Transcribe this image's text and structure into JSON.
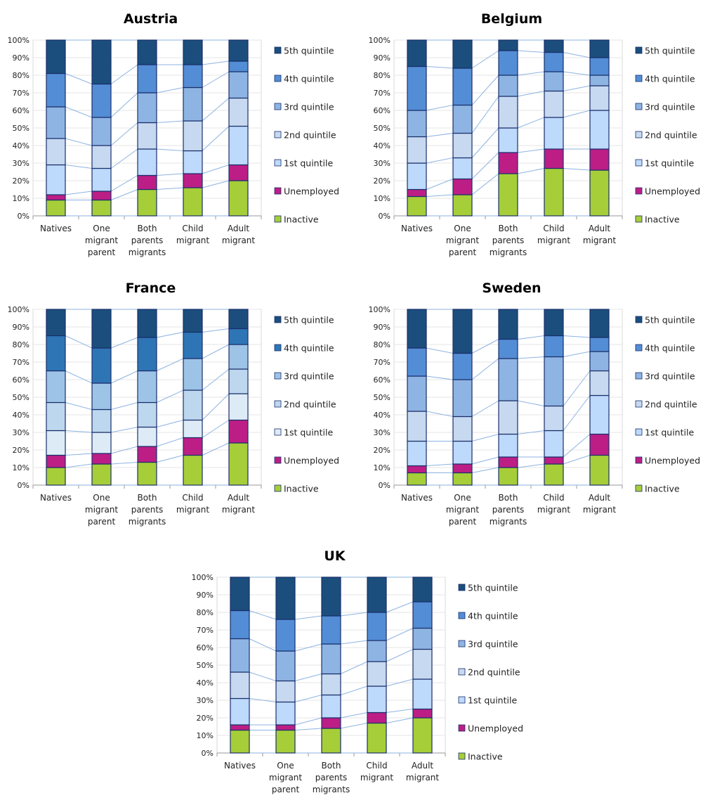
{
  "chart_data": [
    {
      "type": "bar",
      "stacked": true,
      "title": "Austria",
      "categories": [
        "Natives",
        "One migrant parent",
        "Both parents migrants",
        "Child migrant",
        "Adult migrant"
      ],
      "ylim": [
        0,
        100
      ],
      "yticks": [
        "0%",
        "10%",
        "20%",
        "30%",
        "40%",
        "50%",
        "60%",
        "70%",
        "80%",
        "90%",
        "100%"
      ],
      "grid": true,
      "legend": "right",
      "series": [
        {
          "name": "Inactive",
          "values": [
            9,
            9,
            15,
            16,
            20
          ],
          "color": "#a6ce39"
        },
        {
          "name": "Unemployed",
          "values": [
            3,
            5,
            8,
            8,
            9
          ],
          "color": "#bc1e86"
        },
        {
          "name": "1st quintile",
          "values": [
            17,
            13,
            15,
            13,
            22
          ],
          "color": "#bdd9fb"
        },
        {
          "name": "2nd quintile",
          "values": [
            15,
            13,
            15,
            17,
            16
          ],
          "color": "#c6d9f0"
        },
        {
          "name": "3rd quintile",
          "values": [
            18,
            16,
            17,
            19,
            15
          ],
          "color": "#8eb4e3"
        },
        {
          "name": "4th quintile",
          "values": [
            19,
            19,
            16,
            13,
            6
          ],
          "color": "#538dd5"
        },
        {
          "name": "5th quintile",
          "values": [
            19,
            25,
            14,
            14,
            12
          ],
          "color": "#1b4e7c"
        }
      ]
    },
    {
      "type": "bar",
      "stacked": true,
      "title": "Belgium",
      "categories": [
        "Natives",
        "One migrant parent",
        "Both parents migrants",
        "Child migrant",
        "Adult migrant"
      ],
      "ylim": [
        0,
        100
      ],
      "yticks": [
        "0%",
        "10%",
        "20%",
        "30%",
        "40%",
        "50%",
        "60%",
        "70%",
        "80%",
        "90%",
        "100%"
      ],
      "grid": true,
      "legend": "right",
      "series": [
        {
          "name": "Inactive",
          "values": [
            11,
            12,
            24,
            27,
            26
          ],
          "color": "#a6ce39"
        },
        {
          "name": "Unemployed",
          "values": [
            4,
            9,
            12,
            11,
            12
          ],
          "color": "#bc1e86"
        },
        {
          "name": "1st quintile",
          "values": [
            15,
            12,
            14,
            18,
            22
          ],
          "color": "#bdd9fb"
        },
        {
          "name": "2nd quintile",
          "values": [
            15,
            14,
            18,
            15,
            14
          ],
          "color": "#c6d9f0"
        },
        {
          "name": "3rd quintile",
          "values": [
            15,
            16,
            12,
            11,
            6
          ],
          "color": "#8eb4e3"
        },
        {
          "name": "4th quintile",
          "values": [
            25,
            21,
            14,
            11,
            10
          ],
          "color": "#538dd5"
        },
        {
          "name": "5th quintile",
          "values": [
            15,
            16,
            6,
            7,
            10
          ],
          "color": "#1b4e7c"
        }
      ]
    },
    {
      "type": "bar",
      "stacked": true,
      "title": "France",
      "categories": [
        "Natives",
        "One migrant parent",
        "Both parents migrants",
        "Child migrant",
        "Adult migrant"
      ],
      "ylim": [
        0,
        100
      ],
      "yticks": [
        "0%",
        "10%",
        "20%",
        "30%",
        "40%",
        "50%",
        "60%",
        "70%",
        "80%",
        "90%",
        "100%"
      ],
      "grid": true,
      "legend": "right",
      "series": [
        {
          "name": "Inactive",
          "values": [
            10,
            12,
            13,
            17,
            24
          ],
          "color": "#a6ce39"
        },
        {
          "name": "Unemployed",
          "values": [
            7,
            6,
            9,
            10,
            13
          ],
          "color": "#bc1e86"
        },
        {
          "name": "1st quintile",
          "values": [
            14,
            12,
            11,
            10,
            15
          ],
          "color": "#ddebf7"
        },
        {
          "name": "2nd quintile",
          "values": [
            16,
            13,
            14,
            17,
            14
          ],
          "color": "#bdd7ee"
        },
        {
          "name": "3rd quintile",
          "values": [
            18,
            15,
            18,
            18,
            14
          ],
          "color": "#9dc3e6"
        },
        {
          "name": "4th quintile",
          "values": [
            20,
            20,
            19,
            15,
            9
          ],
          "color": "#2e75b6"
        },
        {
          "name": "5th quintile",
          "values": [
            15,
            22,
            16,
            13,
            11
          ],
          "color": "#1b4e7c"
        }
      ]
    },
    {
      "type": "bar",
      "stacked": true,
      "title": "Sweden",
      "categories": [
        "Natives",
        "One migrant parent",
        "Both parents migrants",
        "Child migrant",
        "Adult migrant"
      ],
      "ylim": [
        0,
        100
      ],
      "yticks": [
        "0%",
        "10%",
        "20%",
        "30%",
        "40%",
        "50%",
        "60%",
        "70%",
        "80%",
        "90%",
        "100%"
      ],
      "grid": true,
      "legend": "right",
      "series": [
        {
          "name": "Inactive",
          "values": [
            7,
            7,
            10,
            12,
            17
          ],
          "color": "#a6ce39"
        },
        {
          "name": "Unemployed",
          "values": [
            4,
            5,
            6,
            4,
            12
          ],
          "color": "#bc1e86"
        },
        {
          "name": "1st quintile",
          "values": [
            14,
            13,
            13,
            15,
            22
          ],
          "color": "#bdd9fb"
        },
        {
          "name": "2nd quintile",
          "values": [
            17,
            14,
            19,
            14,
            14
          ],
          "color": "#c6d9f0"
        },
        {
          "name": "3rd quintile",
          "values": [
            20,
            21,
            24,
            28,
            11
          ],
          "color": "#8eb4e3"
        },
        {
          "name": "4th quintile",
          "values": [
            16,
            15,
            11,
            12,
            8
          ],
          "color": "#538dd5"
        },
        {
          "name": "5th quintile",
          "values": [
            22,
            25,
            17,
            15,
            16
          ],
          "color": "#1b4e7c"
        }
      ]
    },
    {
      "type": "bar",
      "stacked": true,
      "title": "UK",
      "categories": [
        "Natives",
        "One migrant parent",
        "Both parents migrants",
        "Child migrant",
        "Adult migrant"
      ],
      "ylim": [
        0,
        100
      ],
      "yticks": [
        "0%",
        "10%",
        "20%",
        "30%",
        "40%",
        "50%",
        "60%",
        "70%",
        "80%",
        "90%",
        "100%"
      ],
      "grid": true,
      "legend": "right",
      "series": [
        {
          "name": "Inactive",
          "values": [
            13,
            13,
            14,
            17,
            20
          ],
          "color": "#a6ce39"
        },
        {
          "name": "Unemployed",
          "values": [
            3,
            3,
            6,
            6,
            5
          ],
          "color": "#bc1e86"
        },
        {
          "name": "1st quintile",
          "values": [
            15,
            13,
            13,
            15,
            17
          ],
          "color": "#bdd9fb"
        },
        {
          "name": "2nd quintile",
          "values": [
            15,
            12,
            12,
            14,
            17
          ],
          "color": "#c6d9f0"
        },
        {
          "name": "3rd quintile",
          "values": [
            19,
            17,
            17,
            12,
            12
          ],
          "color": "#8eb4e3"
        },
        {
          "name": "4th quintile",
          "values": [
            16,
            18,
            16,
            16,
            15
          ],
          "color": "#538dd5"
        },
        {
          "name": "5th quintile",
          "values": [
            19,
            24,
            22,
            20,
            14
          ],
          "color": "#1b4e7c"
        }
      ]
    }
  ],
  "style": {
    "connector_color": "#8db3e2",
    "bar_outline": "#1a2f6a",
    "grid_color": "#e6e6e6",
    "axis_color": "#999999"
  }
}
